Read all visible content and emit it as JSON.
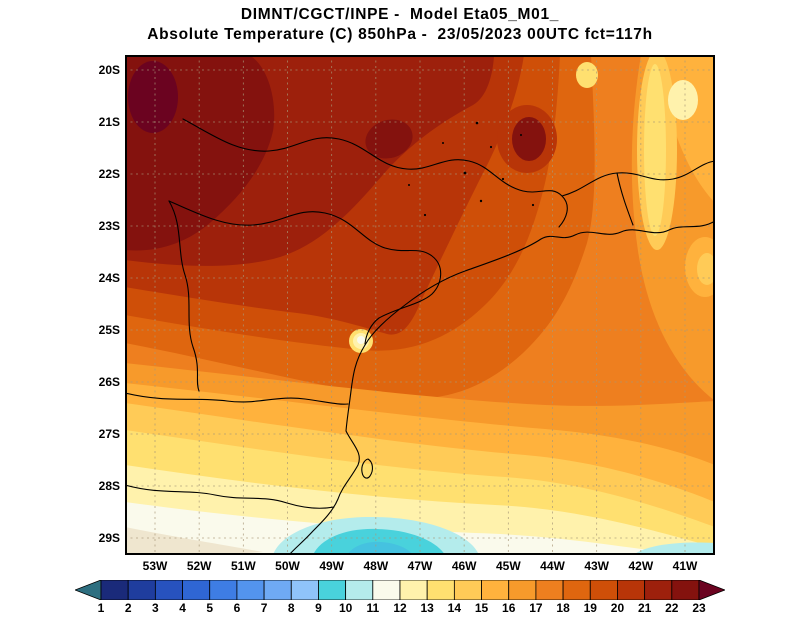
{
  "header": {
    "title_line1": "DIMNT/CGCT/INPE -  Model Eta05_M01_",
    "title_line2": "Absolute Temperature (C) 850hPa -  23/05/2023 00UTC fct=117h"
  },
  "axes": {
    "lat_ticks": [
      "20S",
      "21S",
      "22S",
      "23S",
      "24S",
      "25S",
      "26S",
      "27S",
      "28S",
      "29S"
    ],
    "lon_ticks": [
      "53W",
      "52W",
      "51W",
      "50W",
      "49W",
      "48W",
      "47W",
      "46W",
      "45W",
      "44W",
      "43W",
      "42W",
      "41W"
    ]
  },
  "colorbar": {
    "labels": [
      "1",
      "2",
      "3",
      "4",
      "5",
      "6",
      "7",
      "8",
      "9",
      "10",
      "11",
      "12",
      "13",
      "14",
      "15",
      "16",
      "17",
      "18",
      "19",
      "20",
      "21",
      "22",
      "23"
    ],
    "colors": [
      "#2E6F80",
      "#1A2A7A",
      "#1F3D9E",
      "#2752BE",
      "#2F66D4",
      "#3E7DE4",
      "#5394EE",
      "#6FAAF5",
      "#8FC3FA",
      "#49D2DC",
      "#B4ECEC",
      "#FAFAEC",
      "#FFF2AC",
      "#FFE070",
      "#FFCB57",
      "#FFB23D",
      "#F79A2B",
      "#EE7F1F",
      "#DF660F",
      "#CF4F08",
      "#B83508",
      "#9D200C",
      "#84120E",
      "#6B0320"
    ]
  },
  "palette": {
    "t8": "#45C2E0",
    "t9": "#49D2DC",
    "t10": "#B4ECEC",
    "t11": "#FAFAEC",
    "t12": "#FFF2AC",
    "t13": "#FFE070",
    "t14": "#FFCB57",
    "t15": "#FFB23D",
    "t16": "#F79A2B",
    "t17": "#EE7F1F",
    "t18": "#DF660F",
    "t19": "#CF4F08",
    "t20": "#B83508",
    "t21": "#9D200C",
    "t22": "#84120E",
    "t23": "#6B0320",
    "tan": "#EFE6CF",
    "grid": "#A89878",
    "line": "#000000"
  },
  "chart_data": {
    "type": "heatmap",
    "title": "DIMNT/CGCT/INPE - Model Eta05_M01_",
    "subtitle": "Absolute Temperature (C) 850hPa - 23/05/2023 00UTC fct=117h",
    "institution": "DIMNT/CGCT/INPE",
    "model": "Eta05_M01_",
    "variable": "Absolute Temperature",
    "units": "C",
    "level": "850hPa",
    "run": "23/05/2023 00UTC",
    "forecast": "fct=117h",
    "x_ticks": [
      "53W",
      "52W",
      "51W",
      "50W",
      "49W",
      "48W",
      "47W",
      "46W",
      "45W",
      "44W",
      "43W",
      "42W",
      "41W"
    ],
    "y_ticks": [
      "20S",
      "21S",
      "22S",
      "23S",
      "24S",
      "25S",
      "26S",
      "27S",
      "28S",
      "29S"
    ],
    "colorbar_levels": [
      1,
      2,
      3,
      4,
      5,
      6,
      7,
      8,
      9,
      10,
      11,
      12,
      13,
      14,
      15,
      16,
      17,
      18,
      19,
      20,
      21,
      22,
      23
    ],
    "colorbar_colors": [
      "#2E6F80",
      "#1A2A7A",
      "#1F3D9E",
      "#2752BE",
      "#2F66D4",
      "#3E7DE4",
      "#5394EE",
      "#6FAAF5",
      "#8FC3FA",
      "#49D2DC",
      "#B4ECEC",
      "#FAFAEC",
      "#FFF2AC",
      "#FFE070",
      "#FFCB57",
      "#FFB23D",
      "#F79A2B",
      "#EE7F1F",
      "#DF660F",
      "#CF4F08",
      "#B83508",
      "#9D200C",
      "#84120E",
      "#6B0320"
    ],
    "legend_position": "bottom",
    "grid": "dashed lat-lon graticule every 1 degree",
    "features": [
      "coastline",
      "state borders",
      "cold pool at bottom-center near 49W/29S",
      "warm maximum 22-23C at top-left near 53W/20S"
    ],
    "grid_estimate": {
      "lons_w": [
        53,
        52,
        51,
        50,
        49,
        48,
        47,
        46,
        45,
        44,
        43,
        42,
        41
      ],
      "lats_s": [
        20,
        21,
        22,
        23,
        24,
        25,
        26,
        27,
        28,
        29
      ],
      "values_c": [
        [
          23,
          22,
          22,
          21,
          21,
          21,
          21,
          21,
          20,
          19,
          18,
          14,
          15
        ],
        [
          22,
          22,
          21,
          21,
          21,
          21,
          22,
          21,
          21,
          21,
          18,
          14,
          16
        ],
        [
          21,
          21,
          21,
          21,
          20,
          21,
          21,
          20,
          20,
          20,
          18,
          16,
          16
        ],
        [
          21,
          21,
          20,
          20,
          20,
          20,
          20,
          20,
          19,
          18,
          17,
          16,
          16
        ],
        [
          20,
          20,
          20,
          20,
          20,
          19,
          19,
          19,
          18,
          18,
          17,
          16,
          16
        ],
        [
          18,
          19,
          19,
          19,
          19,
          19,
          18,
          18,
          18,
          17,
          17,
          16,
          16
        ],
        [
          15,
          16,
          17,
          17,
          17,
          17,
          17,
          17,
          17,
          17,
          16,
          16,
          16
        ],
        [
          14,
          14,
          15,
          15,
          15,
          16,
          16,
          16,
          16,
          16,
          16,
          15,
          15
        ],
        [
          13,
          13,
          13,
          12,
          12,
          13,
          14,
          14,
          15,
          15,
          15,
          14,
          14
        ],
        [
          12,
          12,
          11,
          10,
          9,
          11,
          12,
          12,
          13,
          13,
          13,
          13,
          12
        ]
      ]
    }
  }
}
